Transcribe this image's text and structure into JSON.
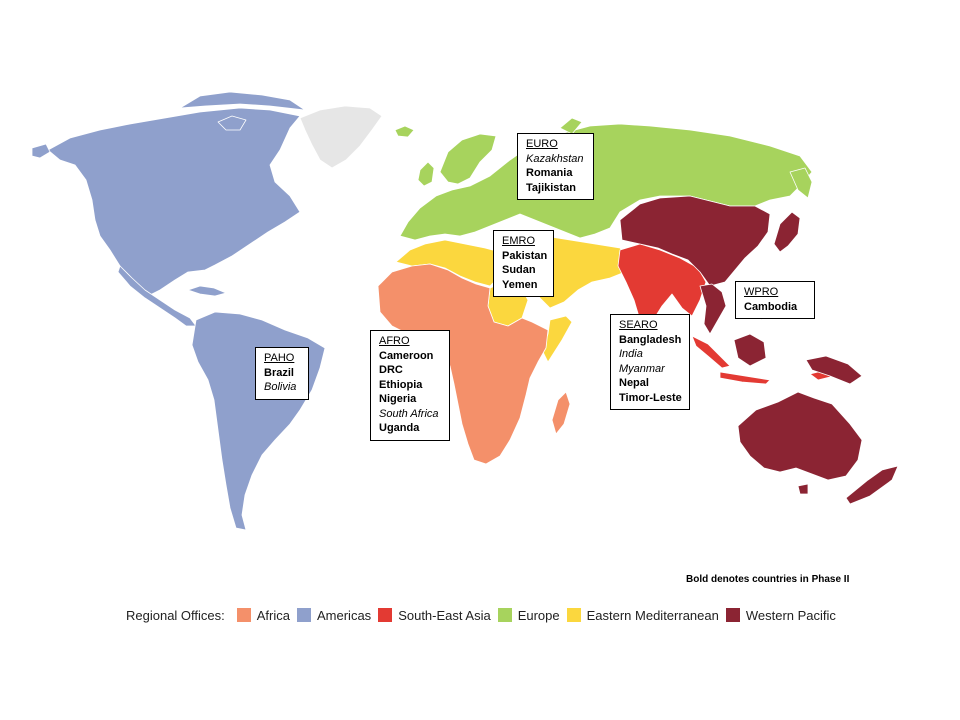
{
  "colors": {
    "africa": "#f4906a",
    "americas": "#8fa0cc",
    "sea": "#e33a33",
    "europe": "#a7d35d",
    "emed": "#fbd73e",
    "wpac": "#8b2433",
    "greenland": "#e6e6e6",
    "border": "#ffffff"
  },
  "callouts": [
    {
      "key": "euro",
      "title": "EURO",
      "countries": [
        {
          "name": "Kazakhstan",
          "style": "italic"
        },
        {
          "name": "Romania",
          "style": "bold"
        },
        {
          "name": "Tajikistan",
          "style": "bold"
        }
      ]
    },
    {
      "key": "emro",
      "title": "EMRO",
      "countries": [
        {
          "name": "Pakistan",
          "style": "bold"
        },
        {
          "name": "Sudan",
          "style": "bold"
        },
        {
          "name": "Yemen",
          "style": "bold"
        }
      ]
    },
    {
      "key": "wpro",
      "title": "WPRO",
      "countries": [
        {
          "name": "Cambodia",
          "style": "bold"
        }
      ]
    },
    {
      "key": "searo",
      "title": "SEARO",
      "countries": [
        {
          "name": "Bangladesh",
          "style": "bold"
        },
        {
          "name": "India",
          "style": "italic"
        },
        {
          "name": "Myanmar",
          "style": "italic"
        },
        {
          "name": "Nepal",
          "style": "bold"
        },
        {
          "name": "Timor-Leste",
          "style": "bold"
        }
      ]
    },
    {
      "key": "afro",
      "title": "AFRO",
      "countries": [
        {
          "name": "Cameroon",
          "style": "bold"
        },
        {
          "name": "DRC",
          "style": "bold"
        },
        {
          "name": "Ethiopia",
          "style": "bold"
        },
        {
          "name": "Nigeria",
          "style": "bold"
        },
        {
          "name": "South Africa",
          "style": "italic"
        },
        {
          "name": "Uganda",
          "style": "bold"
        }
      ]
    },
    {
      "key": "paho",
      "title": "PAHO",
      "countries": [
        {
          "name": "Brazil",
          "style": "bold"
        },
        {
          "name": "Bolivia",
          "style": "italic"
        }
      ]
    }
  ],
  "note": "Bold denotes countries  in Phase II",
  "legend": {
    "title": "Regional  Offices:",
    "items": [
      {
        "label": "Africa",
        "color": "#f4906a"
      },
      {
        "label": "Americas",
        "color": "#8fa0cc"
      },
      {
        "label": "South-East Asia",
        "color": "#e33a33"
      },
      {
        "label": "Europe",
        "color": "#a7d35d"
      },
      {
        "label": "Eastern Mediterranean",
        "color": "#fbd73e"
      },
      {
        "label": "Western Pacific",
        "color": "#8b2433"
      }
    ]
  }
}
